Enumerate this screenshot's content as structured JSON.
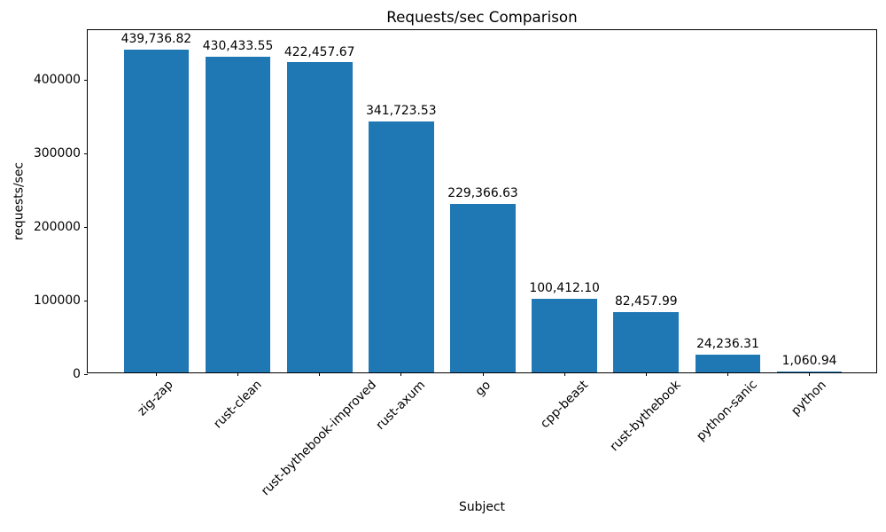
{
  "chart_data": {
    "type": "bar",
    "title": "Requests/sec Comparison",
    "xlabel": "Subject",
    "ylabel": "requests/sec",
    "categories": [
      "zig-zap",
      "rust-clean",
      "rust-bythebook-improved",
      "rust-axum",
      "go",
      "cpp-beast",
      "rust-bythebook",
      "python-sanic",
      "python"
    ],
    "values": [
      439736.82,
      430433.55,
      422457.67,
      341723.53,
      229366.63,
      100412.1,
      82457.99,
      24236.31,
      1060.94
    ],
    "value_labels": [
      "439,736.82",
      "430,433.55",
      "422,457.67",
      "341,723.53",
      "229,366.63",
      "100,412.10",
      "82,457.99",
      "24,236.31",
      "1,060.94"
    ],
    "yticks": [
      0,
      100000,
      200000,
      300000,
      400000
    ],
    "ytick_labels": [
      "0",
      "100000",
      "200000",
      "300000",
      "400000"
    ],
    "ylim": [
      0,
      468600
    ],
    "xtick_rotation_deg": 45,
    "grid": false,
    "legend": null,
    "bar_color": "#1f77b4",
    "text_color": "#000000",
    "background_color": "#ffffff"
  }
}
